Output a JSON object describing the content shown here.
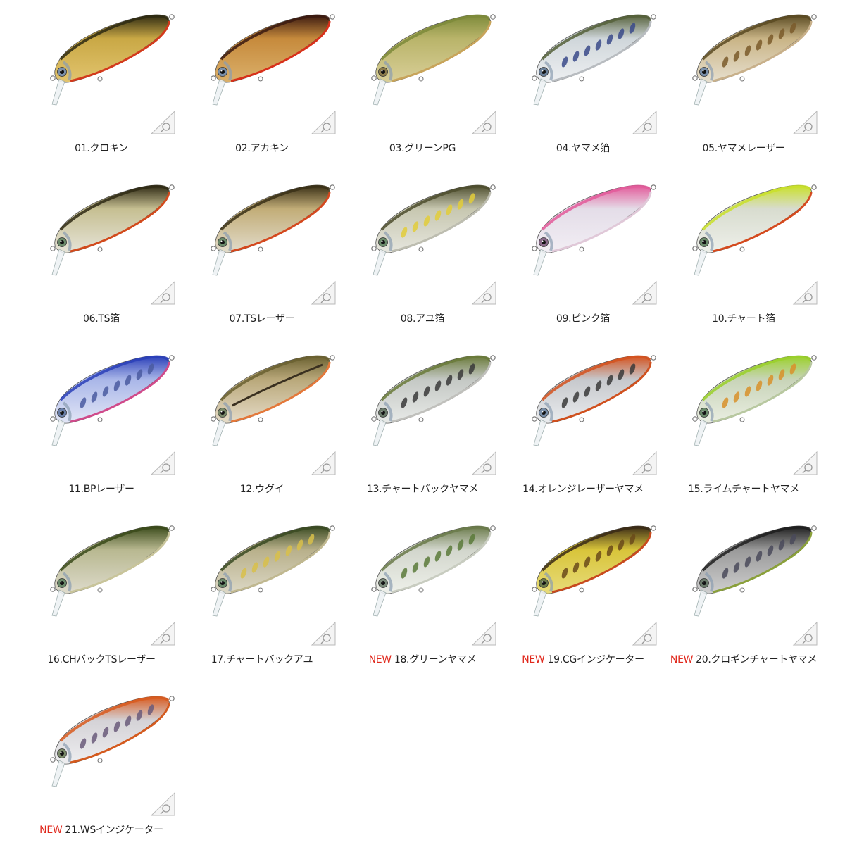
{
  "new_badge": "NEW",
  "mark_icon": "diving-depth-triangle-icon",
  "items": [
    {
      "label": "01.クロキン",
      "is_new": false,
      "back": "#2e2a12",
      "body": "#c9a845",
      "belly": "#e2c46e",
      "line": "#d33a1c",
      "eye": "#7a8fa8"
    },
    {
      "label": "02.アカキン",
      "is_new": false,
      "back": "#3b1a10",
      "body": "#c68a3c",
      "belly": "#dbb06a",
      "line": "#d8301a",
      "eye": "#7a8fa8"
    },
    {
      "label": "03.グリーンPG",
      "is_new": false,
      "back": "#7d8a3a",
      "body": "#b9b46a",
      "belly": "#d9cf98",
      "line": "#c8a45a",
      "eye": "#8a7a4a"
    },
    {
      "label": "04.ヤマメ箔",
      "is_new": false,
      "back": "#55603a",
      "body": "#cfd6da",
      "belly": "#eef0f2",
      "line": "#b8bcc0",
      "eye": "#6a7f98",
      "spots": "#3a4a8a"
    },
    {
      "label": "05.ヤマメレーザー",
      "is_new": false,
      "back": "#5a4a22",
      "body": "#c9b486",
      "belly": "#e7e0cf",
      "line": "#c8b08a",
      "eye": "#7a8fa8",
      "spots": "#7a5a2a"
    },
    {
      "label": "06.TS箔",
      "is_new": false,
      "back": "#2f2a14",
      "body": "#c6bf92",
      "belly": "#e6e4d8",
      "line": "#d24a1c",
      "eye": "#6a8a6a"
    },
    {
      "label": "07.TSレーザー",
      "is_new": false,
      "back": "#3a3016",
      "body": "#c2ad78",
      "belly": "#e2dccb",
      "line": "#d4481e",
      "eye": "#6a8a6a"
    },
    {
      "label": "08.アユ箔",
      "is_new": false,
      "back": "#4e4e2e",
      "body": "#c7c7b0",
      "belly": "#e6e6de",
      "line": "#bdbdb0",
      "eye": "#6a8a6a",
      "spots": "#e2cc3a"
    },
    {
      "label": "09.ピンク箔",
      "is_new": false,
      "back": "#e35a9a",
      "body": "#e4dde8",
      "belly": "#f2eef4",
      "line": "#e0c8d8",
      "eye": "#8a6a8a"
    },
    {
      "label": "10.チャート箔",
      "is_new": false,
      "back": "#c9e02a",
      "body": "#d8dccf",
      "belly": "#eef0ea",
      "line": "#d44a1e",
      "eye": "#6a8a6a"
    },
    {
      "label": "11.BPレーザー",
      "is_new": false,
      "back": "#2a3fb8",
      "body": "#a9b6e8",
      "belly": "#e2e6f6",
      "line": "#d04a8a",
      "eye": "#6a7fa8",
      "spots": "#4a5aa0"
    },
    {
      "label": "12.ウグイ",
      "is_new": false,
      "back": "#6a6030",
      "body": "#b9a87a",
      "belly": "#e6dcc8",
      "line": "#e4783a",
      "eye": "#7a8a6a",
      "stripe": "#3a3020"
    },
    {
      "label": "13.チャートバックヤマメ",
      "is_new": false,
      "back": "#6a7a3a",
      "body": "#c4c8c4",
      "belly": "#e8eae8",
      "line": "#c0c0bc",
      "eye": "#6a7a6a",
      "spots": "#3a3a3a"
    },
    {
      "label": "14.オレンジレーザーヤマメ",
      "is_new": false,
      "back": "#d4521e",
      "body": "#c6c8cc",
      "belly": "#eaecee",
      "line": "#d0501e",
      "eye": "#7a8fa8",
      "spots": "#3a3a3a"
    },
    {
      "label": "15.ライムチャートヤマメ",
      "is_new": false,
      "back": "#9ad02a",
      "body": "#c8d4b8",
      "belly": "#eaeee2",
      "line": "#b8c8a0",
      "eye": "#6a8a6a",
      "spots": "#d8902a"
    },
    {
      "label": "16.CHバックTSレーザー",
      "is_new": false,
      "back": "#3a4a1a",
      "body": "#b8b890",
      "belly": "#dedbcc",
      "line": "#c8c49a",
      "eye": "#6a8a6a"
    },
    {
      "label": "17.チャートバックアユ",
      "is_new": false,
      "back": "#3a4a22",
      "body": "#b8b08a",
      "belly": "#dcd8c6",
      "line": "#c0b890",
      "eye": "#6a8a6a",
      "spots": "#d8c04a"
    },
    {
      "label": "18.グリーンヤマメ",
      "is_new": true,
      "back": "#6a7a4a",
      "body": "#d2d6cc",
      "belly": "#eef0ea",
      "line": "#c8ccc0",
      "eye": "#7a8a7a",
      "spots": "#5a7a3a"
    },
    {
      "label": "19.CGインジケーター",
      "is_new": true,
      "back": "#3a2a16",
      "body": "#d8c43a",
      "belly": "#e8dc7a",
      "line": "#c84a1e",
      "eye": "#6a7a4a",
      "spots": "#6a4a1a"
    },
    {
      "label": "20.クロギンチャートヤマメ",
      "is_new": true,
      "back": "#1e1e1e",
      "body": "#9a9a9a",
      "belly": "#cfcfcf",
      "line": "#8aa03a",
      "eye": "#6a7a6a",
      "spots": "#4a4a5a"
    },
    {
      "label": "21.WSインジケーター",
      "is_new": true,
      "back": "#d85a1e",
      "body": "#d4d2d6",
      "belly": "#eeeef0",
      "line": "#d45a1e",
      "eye": "#7a8a6a",
      "spots": "#6a5a7a"
    }
  ]
}
